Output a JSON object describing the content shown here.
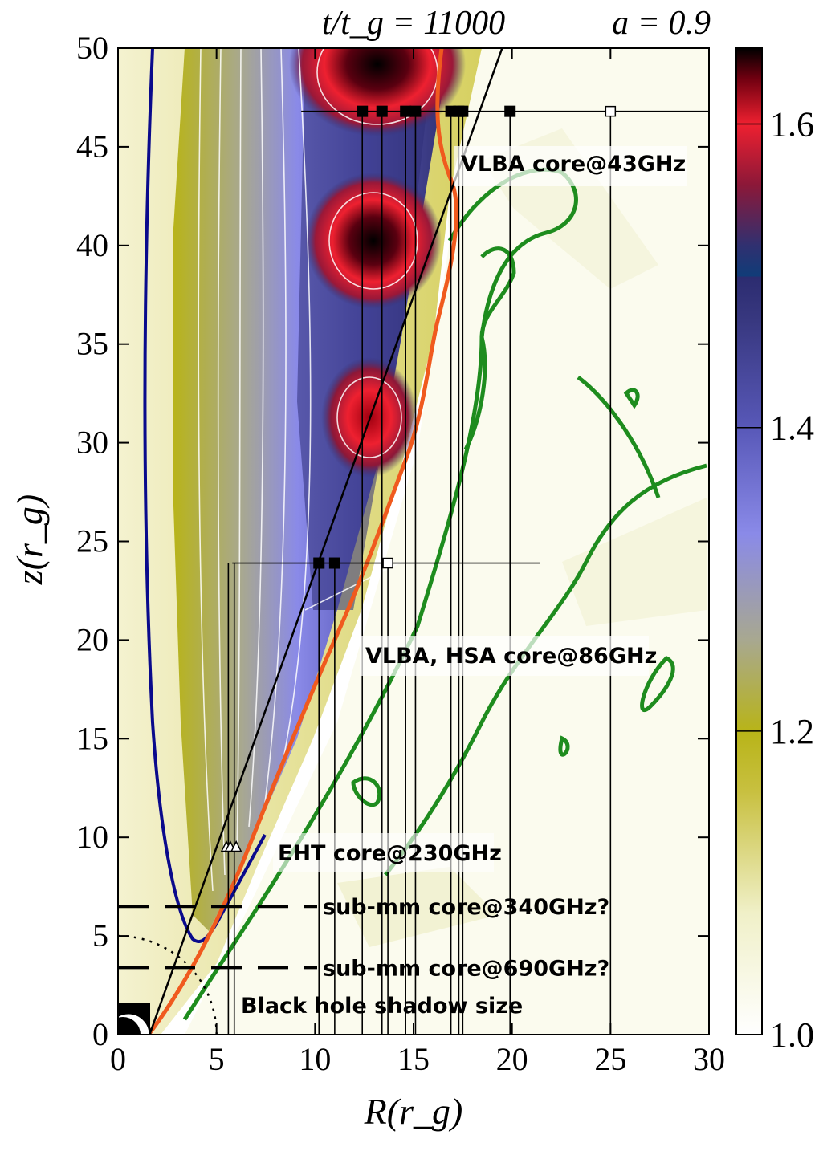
{
  "chart_data": {
    "type": "heatmap",
    "title_left": "t/t_g = 11000",
    "title_right": "a = 0.9",
    "xlabel": "R(r_g)",
    "ylabel": "z(r_g)",
    "xlim": [
      0,
      30
    ],
    "ylim": [
      0,
      50
    ],
    "xticks": [
      0,
      5,
      10,
      15,
      20,
      25,
      30
    ],
    "yticks": [
      0,
      5,
      10,
      15,
      20,
      25,
      30,
      35,
      40,
      45,
      50
    ],
    "colorbar": {
      "range": [
        1.0,
        1.65
      ],
      "ticks": [
        1.0,
        1.2,
        1.4,
        1.6
      ],
      "stops": [
        {
          "v": 1.0,
          "c": "#ffffff"
        },
        {
          "v": 1.08,
          "c": "#f0f0c8"
        },
        {
          "v": 1.16,
          "c": "#c8c040"
        },
        {
          "v": 1.2,
          "c": "#b8b418"
        },
        {
          "v": 1.26,
          "c": "#a8a890"
        },
        {
          "v": 1.33,
          "c": "#8a8ae8"
        },
        {
          "v": 1.4,
          "c": "#5858b8"
        },
        {
          "v": 1.47,
          "c": "#383880"
        },
        {
          "v": 1.499,
          "c": "#2c2c70"
        },
        {
          "v": 1.5,
          "c": "#103c78"
        },
        {
          "v": 1.52,
          "c": "#303070"
        },
        {
          "v": 1.56,
          "c": "#8c1838"
        },
        {
          "v": 1.6,
          "c": "#ee2030"
        },
        {
          "v": 1.63,
          "c": "#700010"
        },
        {
          "v": 1.65,
          "c": "#000000"
        }
      ]
    },
    "frequency_markers": [
      {
        "label": "VLBA core@43GHz",
        "z": 46.8,
        "R_range": [
          9.3,
          30.0
        ],
        "filled_R": [
          12.4,
          13.4,
          14.6,
          15.1,
          16.9,
          17.3,
          17.5,
          19.9
        ],
        "open_R": [
          25.0
        ]
      },
      {
        "label": "VLBA, HSA core@86GHz",
        "z": 23.9,
        "R_range": [
          5.8,
          21.4
        ],
        "filled_R": [
          10.2,
          11.0
        ],
        "open_R": [
          13.7
        ]
      },
      {
        "label": "EHT core@230GHz",
        "z": 9.5,
        "R_range": [
          5.4,
          6.2
        ],
        "triangle_R": [
          5.5,
          5.7,
          6.0
        ]
      },
      {
        "label": "sub-mm core@340GHz?",
        "z": 6.5,
        "dashed": true
      },
      {
        "label": "sub-mm core@690GHz?",
        "z": 3.4,
        "dashed": true
      },
      {
        "label": "Black hole shadow size",
        "radius": 5.0
      }
    ],
    "jet_boundary_line": {
      "R": [
        1.6,
        19.5
      ],
      "z": [
        0.0,
        50.0
      ]
    },
    "colors": {
      "jet_edge_blue": "#0a0a8c",
      "orange_line": "#f05a1e",
      "green_contours": "#1e8c1e"
    }
  }
}
